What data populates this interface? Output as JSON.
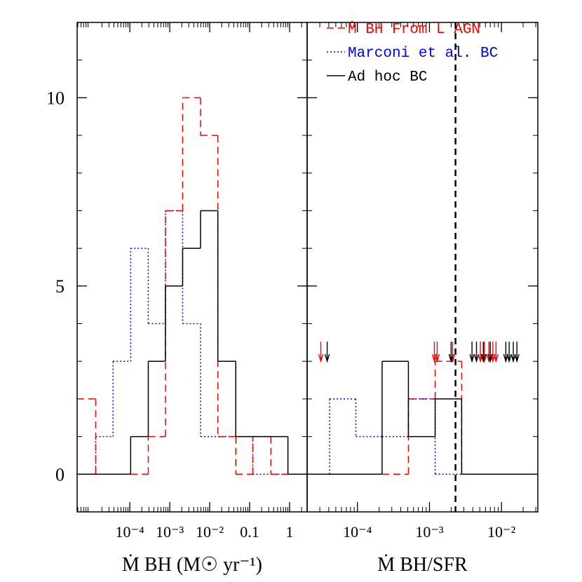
{
  "chart_data": [
    {
      "type": "histogram",
      "log_x": true,
      "x_label": "Ṁ BH (M☉ yr⁻¹)",
      "xlim": [
        4.8e-06,
        2.75
      ],
      "xticks": [
        {
          "value": 0.0001,
          "label": "10⁻⁴"
        },
        {
          "value": 0.001,
          "label": "10⁻³"
        },
        {
          "value": 0.01,
          "label": "10⁻²"
        },
        0.1,
        1
      ],
      "ylim": [
        -1,
        12
      ],
      "yticks": [
        0,
        5,
        10
      ],
      "bins": [
        4.8e-06,
        1.4e-05,
        3.8e-05,
        0.000105,
        0.00029,
        0.00078,
        0.0021,
        0.0059,
        0.016,
        0.045,
        0.12,
        0.34,
        0.91,
        2.75
      ],
      "series": [
        {
          "color": "#0000ff",
          "linestyle": "dotted",
          "values": [
            0,
            1,
            3,
            6,
            4,
            7,
            4,
            1,
            1,
            1,
            0,
            0,
            0
          ]
        },
        {
          "color": "#ff0000",
          "linestyle": "dashed",
          "values": [
            2,
            0,
            0,
            0,
            1,
            7,
            10,
            9,
            1,
            0,
            1,
            0,
            0
          ]
        },
        {
          "color": "#000000",
          "linestyle": "solid",
          "values": [
            0,
            0,
            0,
            1,
            3,
            5,
            6,
            7,
            3,
            1,
            1,
            1,
            0
          ]
        }
      ]
    },
    {
      "type": "histogram",
      "log_x": true,
      "x_label": "Ṁ BH/SFR",
      "xlim": [
        2e-05,
        0.032
      ],
      "xticks": [
        {
          "value": 0.0001,
          "label": "10⁻⁴"
        },
        {
          "value": 0.001,
          "label": "10⁻³"
        },
        {
          "value": 0.01,
          "label": "10⁻²"
        }
      ],
      "ylim": [
        -1,
        12
      ],
      "yticks": [
        0,
        5,
        10
      ],
      "bins": [
        2e-05,
        4.1e-05,
        9.5e-05,
        0.00022,
        0.00051,
        0.0012,
        0.0028,
        0.0066,
        0.015,
        0.032
      ],
      "series": [
        {
          "name": "Ṁ BH From L AGN",
          "color": "#ff0000",
          "linestyle": "dashed",
          "values": [
            0,
            0,
            0,
            0,
            2,
            3,
            0,
            0,
            0
          ]
        },
        {
          "name": "Marconi et al. BC",
          "color": "#0000ff",
          "linestyle": "dotted",
          "values": [
            0,
            2,
            1,
            1,
            2,
            0,
            0,
            0,
            0
          ]
        },
        {
          "name": "Ad hoc BC",
          "color": "#000000",
          "linestyle": "solid",
          "values": [
            0,
            0,
            0,
            3,
            1,
            2,
            0,
            0,
            0
          ]
        }
      ],
      "vline": 0.0023,
      "arrow_y": 3,
      "arrows": [
        {
          "color": "#ff0000",
          "x": [
            3.1e-05,
            0.00117,
            0.00128,
            0.0021,
            0.0051,
            0.0058,
            0.0067,
            0.0076,
            0.0084
          ]
        },
        {
          "color": "#000000",
          "x": [
            3.8e-05,
            0.002,
            0.0039,
            0.0045,
            0.0056,
            0.007,
            0.0115,
            0.0128,
            0.0146,
            0.0164
          ]
        }
      ]
    }
  ]
}
